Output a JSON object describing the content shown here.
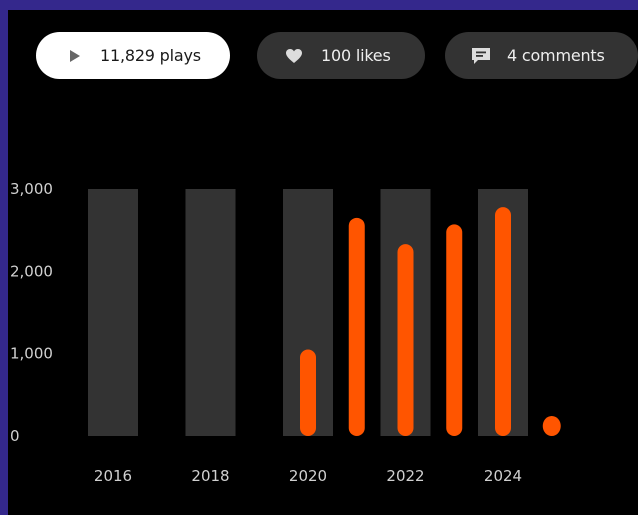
{
  "stats": {
    "plays_label": "11,829 plays",
    "likes_label": "100 likes",
    "comments_label": "4 comments"
  },
  "icons": {
    "plays": "play-icon",
    "likes": "heart-icon",
    "comments": "comment-icon"
  },
  "colors": {
    "background": "#000000",
    "accent": "#ff5500",
    "column": "#333333",
    "frame": "#34288c"
  },
  "chart_data": {
    "type": "bar",
    "title": "",
    "xlabel": "",
    "ylabel": "",
    "ylim": [
      0,
      3000
    ],
    "y_ticks": [
      "3,000",
      "2,000",
      "1,000",
      "0"
    ],
    "x_ticks": [
      "2016",
      "2018",
      "2020",
      "2022",
      "2024"
    ],
    "categories": [
      "2020",
      "2021",
      "2022",
      "2023",
      "2024",
      "2025"
    ],
    "values": [
      1050,
      2650,
      2330,
      2570,
      2780,
      80
    ]
  }
}
